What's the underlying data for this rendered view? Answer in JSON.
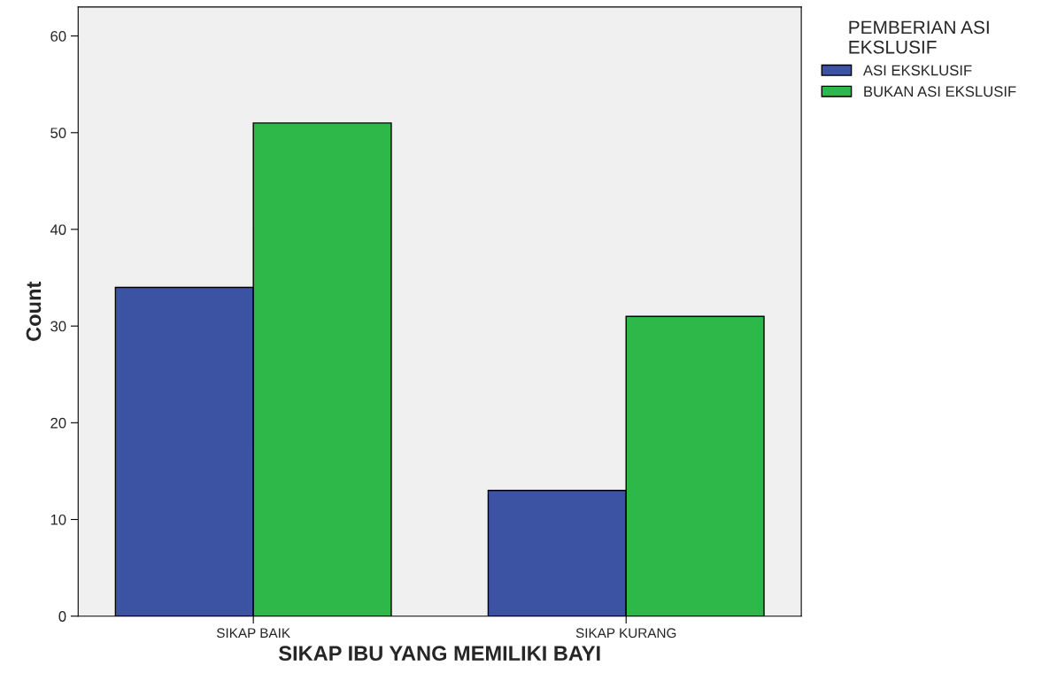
{
  "chart_data": {
    "type": "bar",
    "xlabel": "SIKAP IBU YANG MEMILIKI BAYI",
    "ylabel": "Count",
    "legend_title": "PEMBERIAN ASI\nEKSLUSIF",
    "categories": [
      "SIKAP BAIK",
      "SIKAP KURANG"
    ],
    "series": [
      {
        "name": "ASI EKSKLUSIF",
        "color": "#3c53a4",
        "values": [
          34,
          13
        ]
      },
      {
        "name": "BUKAN ASI EKSLUSIF",
        "color": "#2eb84a",
        "values": [
          51,
          31
        ]
      }
    ],
    "ylim": [
      0,
      63
    ],
    "yticks": [
      0,
      10,
      20,
      30,
      40,
      50,
      60
    ],
    "grid": false,
    "legend": "top right"
  }
}
